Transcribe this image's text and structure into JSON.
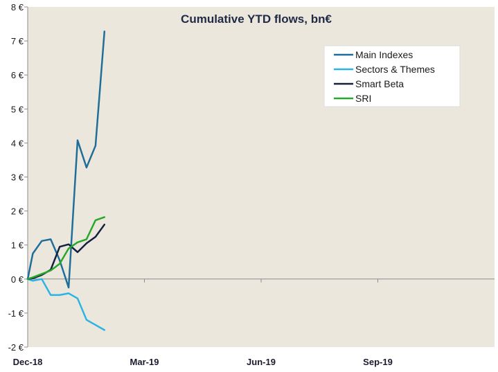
{
  "chart_data": {
    "type": "line",
    "title": "Cumulative YTD flows, bn€",
    "xlabel": "",
    "ylabel": "",
    "ylim": [
      -2,
      8
    ],
    "y_ticks": [
      "-2 €",
      "-1 €",
      "0 €",
      "1 €",
      "2 €",
      "3 €",
      "4 €",
      "5 €",
      "6 €",
      "7 €",
      "8 €"
    ],
    "x_ticks": [
      "Dec-18",
      "Mar-19",
      "Jun-19",
      "Sep-19"
    ],
    "x_range": [
      "2018-12-31",
      "2019-12-31"
    ],
    "grid": false,
    "legend_position": "top-right",
    "background_color": "#ece7dc",
    "series": [
      {
        "name": "Main Indexes",
        "color": "#1f6e99",
        "points": [
          [
            "2018-12-31",
            0.0
          ],
          [
            "2019-01-04",
            0.75
          ],
          [
            "2019-01-11",
            1.12
          ],
          [
            "2019-01-18",
            1.17
          ],
          [
            "2019-01-25",
            0.55
          ],
          [
            "2019-02-01",
            -0.25
          ],
          [
            "2019-02-08",
            4.08
          ],
          [
            "2019-02-15",
            3.28
          ],
          [
            "2019-02-22",
            3.92
          ],
          [
            "2019-03-01",
            7.28
          ]
        ]
      },
      {
        "name": "Sectors & Themes",
        "color": "#2ab4e6",
        "points": [
          [
            "2018-12-31",
            0.0
          ],
          [
            "2019-01-04",
            -0.05
          ],
          [
            "2019-01-11",
            0.0
          ],
          [
            "2019-01-18",
            -0.47
          ],
          [
            "2019-01-25",
            -0.47
          ],
          [
            "2019-02-01",
            -0.42
          ],
          [
            "2019-02-08",
            -0.57
          ],
          [
            "2019-02-15",
            -1.2
          ],
          [
            "2019-02-22",
            -1.35
          ],
          [
            "2019-03-01",
            -1.5
          ]
        ]
      },
      {
        "name": "Smart Beta",
        "color": "#14203f",
        "points": [
          [
            "2018-12-31",
            0.0
          ],
          [
            "2019-01-04",
            0.02
          ],
          [
            "2019-01-11",
            0.12
          ],
          [
            "2019-01-18",
            0.27
          ],
          [
            "2019-01-25",
            0.95
          ],
          [
            "2019-02-01",
            1.02
          ],
          [
            "2019-02-08",
            0.79
          ],
          [
            "2019-02-15",
            1.05
          ],
          [
            "2019-02-22",
            1.24
          ],
          [
            "2019-03-01",
            1.6
          ]
        ]
      },
      {
        "name": "SRI",
        "color": "#27a82b",
        "points": [
          [
            "2018-12-31",
            0.0
          ],
          [
            "2019-01-04",
            0.05
          ],
          [
            "2019-01-11",
            0.15
          ],
          [
            "2019-01-18",
            0.25
          ],
          [
            "2019-01-25",
            0.45
          ],
          [
            "2019-02-01",
            0.9
          ],
          [
            "2019-02-08",
            1.08
          ],
          [
            "2019-02-15",
            1.17
          ],
          [
            "2019-02-22",
            1.73
          ],
          [
            "2019-03-01",
            1.82
          ]
        ]
      }
    ]
  }
}
